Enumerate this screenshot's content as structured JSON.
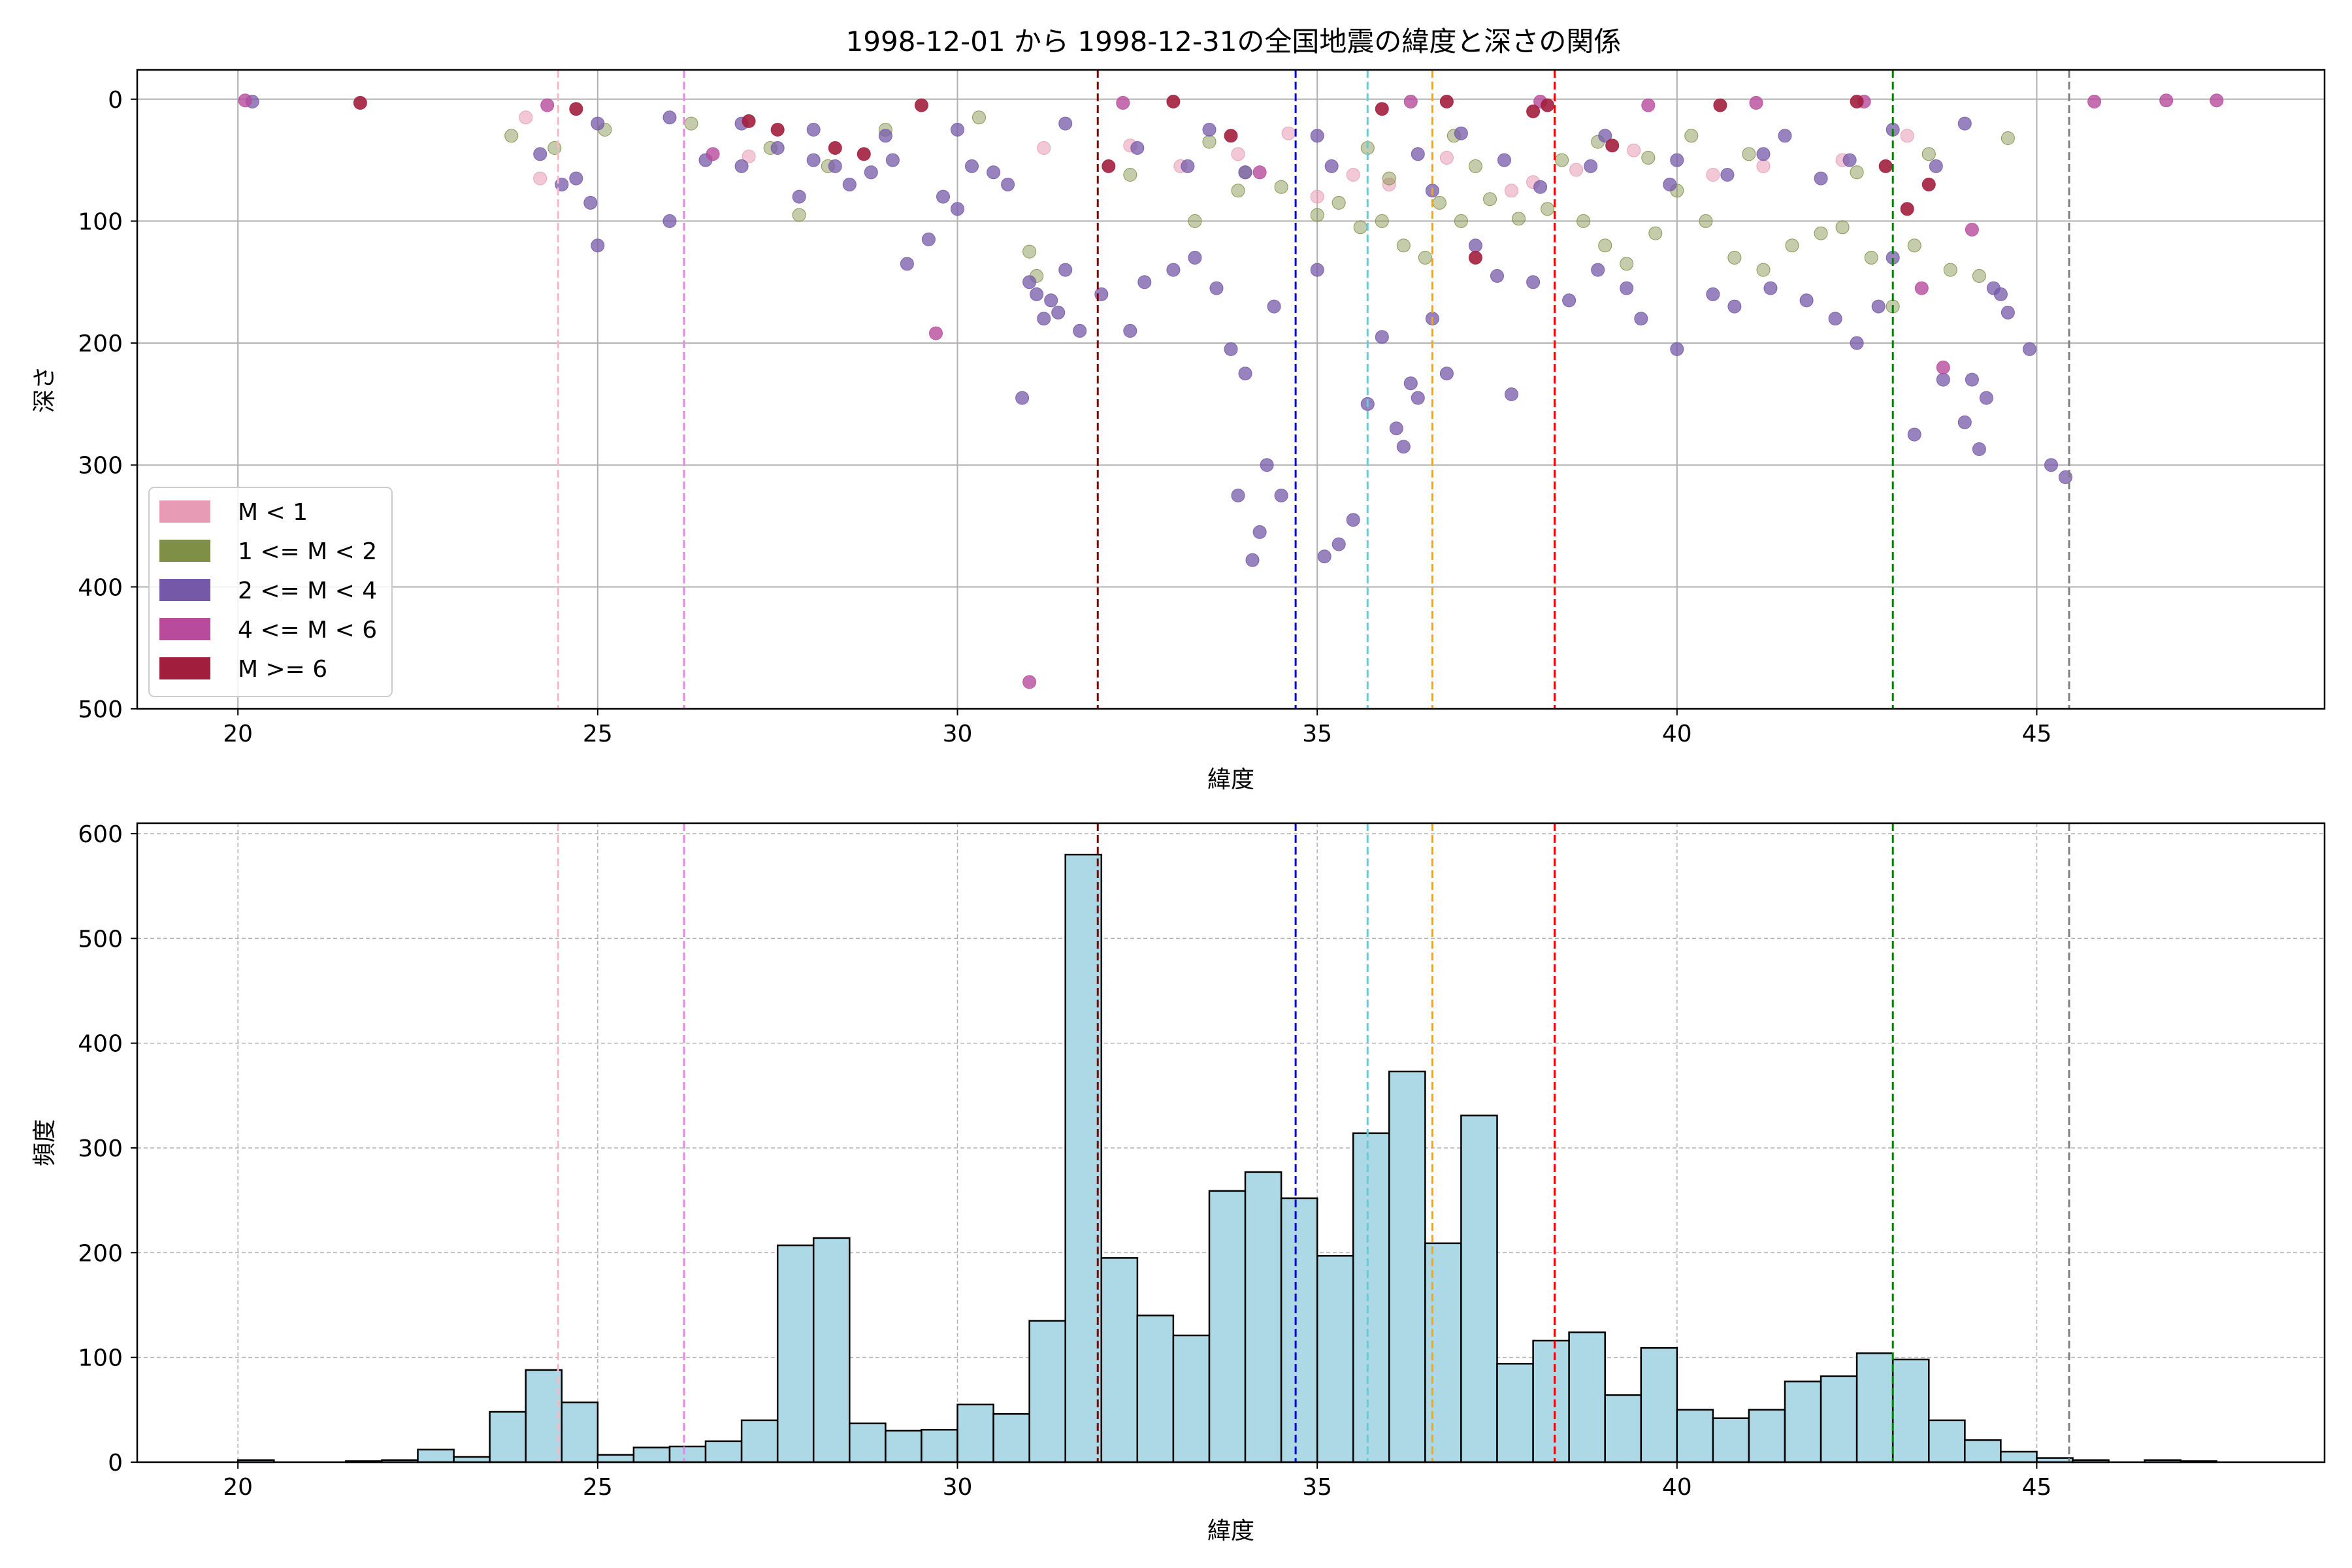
{
  "title": "1998-12-01 から 1998-12-31の全国地震の緯度と深さの関係",
  "chart_data": [
    {
      "type": "scatter",
      "xlabel": "緯度",
      "ylabel": "深さ",
      "xlim": [
        18.6,
        49.0
      ],
      "ylim": [
        500,
        -24
      ],
      "y_inverted": true,
      "xticks": [
        20,
        25,
        30,
        35,
        40,
        45
      ],
      "yticks": [
        0,
        100,
        200,
        300,
        400,
        500
      ],
      "grid": true,
      "legend_placement": "lower-left",
      "legend": [
        {
          "label": "M < 1",
          "color": "#e79bb5"
        },
        {
          "label": "1 <= M < 2",
          "color": "#7f8f45"
        },
        {
          "label": "2 <= M < 4",
          "color": "#7559a8"
        },
        {
          "label": "4 <= M < 6",
          "color": "#b84b9c"
        },
        {
          "label": "M >= 6",
          "color": "#a21e3d"
        }
      ],
      "vlines": [
        {
          "x": 24.45,
          "color": "#ffb6c1"
        },
        {
          "x": 26.2,
          "color": "#ee82ee"
        },
        {
          "x": 31.95,
          "color": "#8b0000"
        },
        {
          "x": 34.7,
          "color": "#0000dd"
        },
        {
          "x": 35.7,
          "color": "#6cc9d6"
        },
        {
          "x": 36.6,
          "color": "#ffa500"
        },
        {
          "x": 38.3,
          "color": "#ee0000"
        },
        {
          "x": 43.0,
          "color": "#008000"
        },
        {
          "x": 45.45,
          "color": "#808080"
        }
      ],
      "series": [
        {
          "points": [
            [
              24.2,
              65
            ],
            [
              27.1,
              47
            ],
            [
              24.0,
              15
            ],
            [
              31.2,
              40
            ],
            [
              33.1,
              55
            ],
            [
              35.5,
              62
            ],
            [
              36.8,
              48
            ],
            [
              38.6,
              58
            ],
            [
              39.4,
              42
            ],
            [
              41.2,
              55
            ],
            [
              42.3,
              50
            ],
            [
              43.2,
              30
            ],
            [
              37.7,
              75
            ],
            [
              33.9,
              45
            ],
            [
              35.0,
              80
            ],
            [
              36.0,
              70
            ],
            [
              32.4,
              38
            ],
            [
              34.6,
              28
            ],
            [
              38.0,
              68
            ],
            [
              40.5,
              62
            ]
          ]
        },
        {
          "points": [
            [
              23.8,
              30
            ],
            [
              24.4,
              40
            ],
            [
              25.1,
              25
            ],
            [
              26.3,
              20
            ],
            [
              27.4,
              40
            ],
            [
              27.8,
              95
            ],
            [
              28.2,
              55
            ],
            [
              29.0,
              25
            ],
            [
              30.3,
              15
            ],
            [
              31.0,
              125
            ],
            [
              31.1,
              145
            ],
            [
              32.4,
              62
            ],
            [
              33.3,
              100
            ],
            [
              33.9,
              75
            ],
            [
              34.5,
              72
            ],
            [
              35.0,
              95
            ],
            [
              35.3,
              85
            ],
            [
              35.6,
              105
            ],
            [
              35.9,
              100
            ],
            [
              36.2,
              120
            ],
            [
              36.5,
              130
            ],
            [
              36.7,
              85
            ],
            [
              37.0,
              100
            ],
            [
              37.4,
              82
            ],
            [
              37.8,
              98
            ],
            [
              38.2,
              90
            ],
            [
              38.7,
              100
            ],
            [
              39.0,
              120
            ],
            [
              39.3,
              135
            ],
            [
              39.7,
              110
            ],
            [
              40.0,
              75
            ],
            [
              40.4,
              100
            ],
            [
              40.8,
              130
            ],
            [
              41.2,
              140
            ],
            [
              41.6,
              120
            ],
            [
              42.0,
              110
            ],
            [
              42.3,
              105
            ],
            [
              42.7,
              130
            ],
            [
              43.0,
              170
            ],
            [
              43.3,
              120
            ],
            [
              43.8,
              140
            ],
            [
              44.2,
              145
            ],
            [
              44.6,
              32
            ],
            [
              34.0,
              60
            ],
            [
              36.0,
              65
            ],
            [
              37.2,
              55
            ],
            [
              38.4,
              50
            ],
            [
              39.6,
              48
            ],
            [
              41.0,
              45
            ],
            [
              42.5,
              60
            ],
            [
              35.7,
              40
            ],
            [
              33.5,
              35
            ],
            [
              36.9,
              30
            ],
            [
              38.9,
              35
            ],
            [
              40.2,
              30
            ],
            [
              43.5,
              45
            ]
          ]
        },
        {
          "points": [
            [
              20.2,
              2
            ],
            [
              24.2,
              45
            ],
            [
              24.5,
              70
            ],
            [
              24.7,
              65
            ],
            [
              25.0,
              120
            ],
            [
              24.9,
              85
            ],
            [
              26.0,
              100
            ],
            [
              26.5,
              50
            ],
            [
              27.0,
              55
            ],
            [
              27.5,
              40
            ],
            [
              27.8,
              80
            ],
            [
              28.0,
              50
            ],
            [
              28.3,
              55
            ],
            [
              28.5,
              70
            ],
            [
              28.8,
              60
            ],
            [
              29.1,
              50
            ],
            [
              29.3,
              135
            ],
            [
              29.6,
              115
            ],
            [
              29.8,
              80
            ],
            [
              30.0,
              90
            ],
            [
              30.2,
              55
            ],
            [
              30.5,
              60
            ],
            [
              30.7,
              70
            ],
            [
              30.9,
              245
            ],
            [
              31.0,
              150
            ],
            [
              31.1,
              160
            ],
            [
              31.2,
              180
            ],
            [
              31.3,
              165
            ],
            [
              31.4,
              175
            ],
            [
              31.5,
              140
            ],
            [
              31.7,
              190
            ],
            [
              32.0,
              160
            ],
            [
              32.4,
              190
            ],
            [
              32.6,
              150
            ],
            [
              33.0,
              140
            ],
            [
              33.3,
              130
            ],
            [
              33.6,
              155
            ],
            [
              33.8,
              205
            ],
            [
              33.9,
              325
            ],
            [
              34.0,
              225
            ],
            [
              34.1,
              378
            ],
            [
              34.2,
              355
            ],
            [
              34.3,
              300
            ],
            [
              34.4,
              170
            ],
            [
              34.5,
              325
            ],
            [
              35.0,
              140
            ],
            [
              35.1,
              375
            ],
            [
              35.3,
              365
            ],
            [
              35.5,
              345
            ],
            [
              35.7,
              250
            ],
            [
              35.9,
              195
            ],
            [
              36.1,
              270
            ],
            [
              36.2,
              285
            ],
            [
              36.3,
              233
            ],
            [
              36.4,
              245
            ],
            [
              36.6,
              180
            ],
            [
              36.8,
              225
            ],
            [
              37.2,
              120
            ],
            [
              37.5,
              145
            ],
            [
              37.7,
              242
            ],
            [
              38.0,
              150
            ],
            [
              38.5,
              165
            ],
            [
              38.9,
              140
            ],
            [
              39.3,
              155
            ],
            [
              39.5,
              180
            ],
            [
              40.0,
              205
            ],
            [
              40.5,
              160
            ],
            [
              40.8,
              170
            ],
            [
              41.3,
              155
            ],
            [
              41.8,
              165
            ],
            [
              42.2,
              180
            ],
            [
              42.5,
              200
            ],
            [
              42.8,
              170
            ],
            [
              43.0,
              130
            ],
            [
              43.3,
              275
            ],
            [
              43.7,
              230
            ],
            [
              44.0,
              265
            ],
            [
              44.1,
              230
            ],
            [
              44.2,
              287
            ],
            [
              44.3,
              245
            ],
            [
              44.4,
              155
            ],
            [
              44.5,
              160
            ],
            [
              44.6,
              175
            ],
            [
              44.9,
              205
            ],
            [
              45.2,
              300
            ],
            [
              45.4,
              310
            ],
            [
              32.5,
              40
            ],
            [
              33.2,
              55
            ],
            [
              34.0,
              60
            ],
            [
              35.2,
              55
            ],
            [
              36.4,
              45
            ],
            [
              37.6,
              50
            ],
            [
              38.8,
              55
            ],
            [
              40.0,
              50
            ],
            [
              41.2,
              45
            ],
            [
              42.4,
              50
            ],
            [
              43.6,
              55
            ],
            [
              29.0,
              30
            ],
            [
              30.0,
              25
            ],
            [
              31.5,
              20
            ],
            [
              28.0,
              25
            ],
            [
              27.0,
              20
            ],
            [
              26.0,
              15
            ],
            [
              25.0,
              20
            ],
            [
              39.0,
              30
            ],
            [
              41.5,
              30
            ],
            [
              43.0,
              25
            ],
            [
              44.0,
              20
            ],
            [
              35.0,
              30
            ],
            [
              37.0,
              28
            ],
            [
              33.5,
              25
            ],
            [
              42.0,
              65
            ],
            [
              40.7,
              62
            ],
            [
              39.9,
              70
            ],
            [
              38.1,
              72
            ],
            [
              36.6,
              75
            ]
          ]
        },
        {
          "points": [
            [
              20.1,
              1
            ],
            [
              24.3,
              5
            ],
            [
              26.6,
              45
            ],
            [
              29.7,
              192
            ],
            [
              31.0,
              478
            ],
            [
              34.2,
              60
            ],
            [
              39.6,
              5
            ],
            [
              41.1,
              3
            ],
            [
              43.7,
              220
            ],
            [
              44.1,
              107
            ],
            [
              43.4,
              155
            ],
            [
              45.8,
              2
            ],
            [
              46.8,
              1
            ],
            [
              47.5,
              1
            ],
            [
              36.3,
              2
            ],
            [
              32.3,
              3
            ],
            [
              38.1,
              2
            ],
            [
              42.6,
              2
            ]
          ]
        },
        {
          "points": [
            [
              21.7,
              3
            ],
            [
              24.7,
              8
            ],
            [
              27.1,
              18
            ],
            [
              28.3,
              40
            ],
            [
              28.7,
              45
            ],
            [
              27.5,
              25
            ],
            [
              32.1,
              55
            ],
            [
              33.8,
              30
            ],
            [
              36.8,
              2
            ],
            [
              37.2,
              130
            ],
            [
              38.0,
              10
            ],
            [
              38.2,
              5
            ],
            [
              39.1,
              38
            ],
            [
              40.6,
              5
            ],
            [
              42.5,
              2
            ],
            [
              42.9,
              55
            ],
            [
              43.5,
              70
            ],
            [
              43.2,
              90
            ],
            [
              33.0,
              2
            ],
            [
              35.9,
              8
            ],
            [
              29.5,
              5
            ]
          ]
        }
      ]
    },
    {
      "type": "histogram",
      "xlabel": "緯度",
      "ylabel": "頻度",
      "xlim": [
        18.6,
        49.0
      ],
      "ylim": [
        0,
        610
      ],
      "xticks": [
        20,
        25,
        30,
        35,
        40,
        45
      ],
      "yticks": [
        0,
        100,
        200,
        300,
        400,
        500,
        600
      ],
      "grid": true,
      "bar_color": "#add8e6",
      "bin_edges": [
        20.0,
        20.5,
        21.0,
        21.5,
        22.0,
        22.5,
        23.0,
        23.5,
        24.0,
        24.5,
        25.0,
        25.5,
        26.0,
        26.5,
        27.0,
        27.5,
        28.0,
        28.5,
        29.0,
        29.5,
        30.0,
        30.5,
        31.0,
        31.5,
        32.0,
        32.5,
        33.0,
        33.5,
        34.0,
        34.5,
        35.0,
        35.5,
        36.0,
        36.5,
        37.0,
        37.5,
        38.0,
        38.5,
        39.0,
        39.5,
        40.0,
        40.5,
        41.0,
        41.5,
        42.0,
        42.5,
        43.0,
        43.5,
        44.0,
        44.5,
        45.0,
        45.5,
        46.0,
        46.5,
        47.0,
        47.5
      ],
      "counts": [
        2,
        0,
        0,
        1,
        2,
        12,
        5,
        48,
        88,
        57,
        7,
        14,
        15,
        20,
        40,
        207,
        214,
        37,
        30,
        31,
        55,
        46,
        135,
        580,
        195,
        140,
        121,
        259,
        277,
        252,
        197,
        314,
        373,
        209,
        331,
        94,
        116,
        124,
        64,
        109,
        50,
        42,
        50,
        77,
        82,
        104,
        98,
        40,
        21,
        10,
        4,
        2,
        0,
        2,
        1
      ],
      "vlines": [
        {
          "x": 24.45,
          "color": "#ffb6c1"
        },
        {
          "x": 26.2,
          "color": "#ee82ee"
        },
        {
          "x": 31.95,
          "color": "#8b0000"
        },
        {
          "x": 34.7,
          "color": "#0000dd"
        },
        {
          "x": 35.7,
          "color": "#6cc9d6"
        },
        {
          "x": 36.6,
          "color": "#ffa500"
        },
        {
          "x": 38.3,
          "color": "#ee0000"
        },
        {
          "x": 43.0,
          "color": "#008000"
        },
        {
          "x": 45.45,
          "color": "#808080"
        }
      ]
    }
  ]
}
